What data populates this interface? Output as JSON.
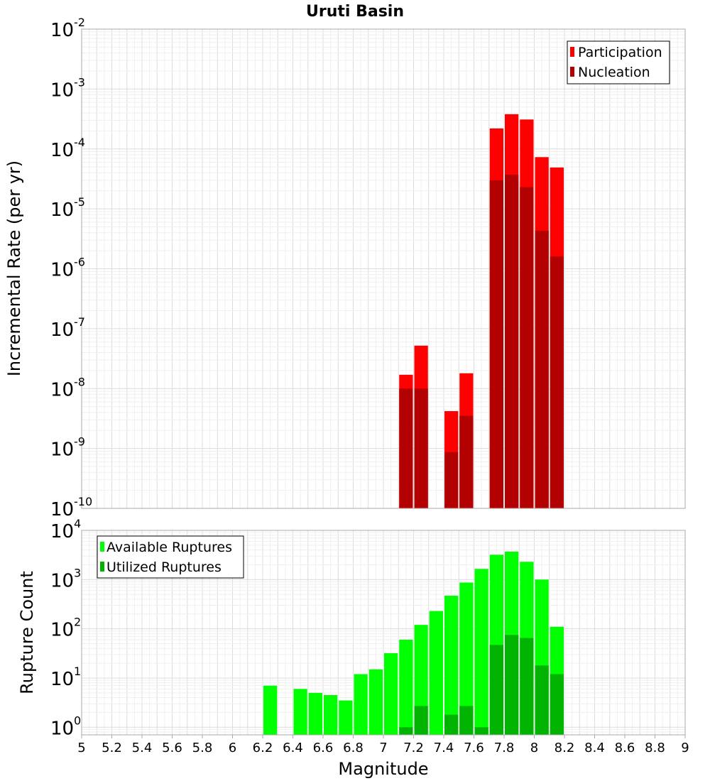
{
  "chart_data": [
    {
      "type": "bar",
      "title": "Uruti Basin",
      "xlabel": "",
      "ylabel": "Incremental Rate (per yr)",
      "yscale": "log",
      "xlim": [
        5,
        9
      ],
      "ylim": [
        1e-10,
        0.01
      ],
      "bar_width": 0.1,
      "grid": true,
      "legend_position": "top-right",
      "series": [
        {
          "name": "Participation",
          "color": "#ff0000",
          "x": [
            7.15,
            7.25,
            7.45,
            7.55,
            7.75,
            7.85,
            7.95,
            8.05,
            8.15
          ],
          "values": [
            1.7e-08,
            5.2e-08,
            4.2e-09,
            1.8e-08,
            0.00022,
            0.00038,
            0.00031,
            7.3e-05,
            4.9e-05
          ]
        },
        {
          "name": "Nucleation",
          "color": "#b30000",
          "x": [
            7.15,
            7.25,
            7.45,
            7.55,
            7.75,
            7.85,
            7.95,
            8.05,
            8.15
          ],
          "values": [
            1e-08,
            1e-08,
            8.7e-10,
            3.5e-09,
            3e-05,
            3.7e-05,
            2.3e-05,
            4.3e-06,
            1.6e-06
          ]
        }
      ]
    },
    {
      "type": "bar",
      "title": "",
      "xlabel": "Magnitude",
      "ylabel": "Rupture Count",
      "yscale": "log",
      "xlim": [
        5,
        9
      ],
      "ylim": [
        0.7,
        10000
      ],
      "bar_width": 0.1,
      "grid": true,
      "legend_position": "top-left",
      "x_ticks": [
        "5",
        "5.2",
        "5.4",
        "5.6",
        "5.8",
        "6",
        "6.2",
        "6.4",
        "6.6",
        "6.8",
        "7",
        "7.2",
        "7.4",
        "7.6",
        "7.8",
        "8",
        "8.2",
        "8.4",
        "8.6",
        "8.8",
        "9"
      ],
      "series": [
        {
          "name": "Available Ruptures",
          "color": "#00ff00",
          "x": [
            6.25,
            6.45,
            6.55,
            6.65,
            6.75,
            6.85,
            6.95,
            7.05,
            7.15,
            7.25,
            7.35,
            7.45,
            7.55,
            7.65,
            7.75,
            7.85,
            7.95,
            8.05,
            8.15
          ],
          "values": [
            7,
            6,
            5,
            4.5,
            3.5,
            12,
            15,
            32,
            60,
            120,
            230,
            470,
            870,
            1650,
            3200,
            3700,
            2300,
            1000,
            110
          ]
        },
        {
          "name": "Utilized Ruptures",
          "color": "#00b300",
          "x": [
            7.15,
            7.25,
            7.45,
            7.55,
            7.65,
            7.75,
            7.85,
            7.95,
            8.05,
            8.15
          ],
          "values": [
            1,
            2.7,
            1.8,
            2.7,
            1,
            47,
            75,
            65,
            18,
            12
          ]
        }
      ]
    }
  ]
}
